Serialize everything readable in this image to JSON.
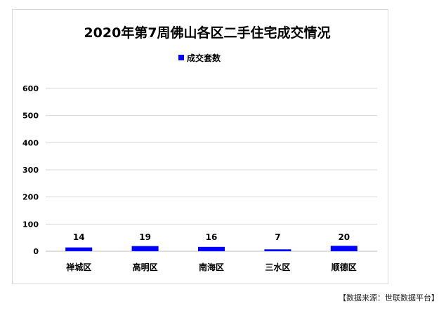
{
  "chart_data": {
    "type": "bar",
    "title": "2020年第7周佛山各区二手住宅成交情况",
    "categories": [
      "禅城区",
      "高明区",
      "南海区",
      "三水区",
      "顺德区"
    ],
    "series": [
      {
        "name": "成交套数",
        "values": [
          14,
          19,
          16,
          7,
          20
        ],
        "color": "#0000ff"
      }
    ],
    "ylim": [
      0,
      600
    ],
    "yticks": [
      0,
      100,
      200,
      300,
      400,
      500,
      600
    ],
    "grid": true,
    "legend": "top",
    "data_labels": true
  },
  "source_note": "【数据来源：世联数据平台】"
}
